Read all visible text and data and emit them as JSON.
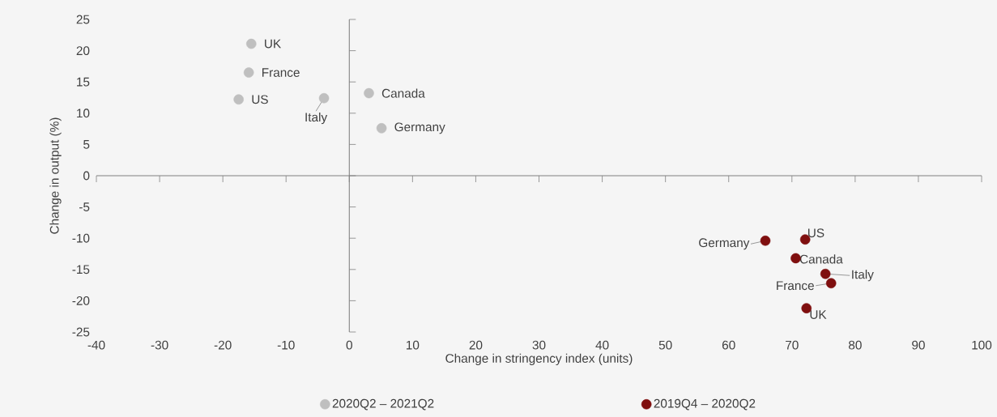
{
  "chart_data": {
    "type": "scatter",
    "xlabel": "Change in stringency index (units)",
    "ylabel": "Change in output (%)",
    "xlim": [
      -40,
      100
    ],
    "ylim": [
      -25,
      25
    ],
    "xticks": [
      -40,
      -30,
      -20,
      -10,
      0,
      10,
      20,
      30,
      40,
      50,
      60,
      70,
      80,
      90,
      100
    ],
    "yticks": [
      -25,
      -20,
      -15,
      -10,
      -5,
      0,
      5,
      10,
      15,
      20,
      25
    ],
    "marker": "circle",
    "legend": "bottom",
    "series": [
      {
        "name": "2020Q2 – 2021Q2",
        "color": "#bfbfbf",
        "x": [
          -15.5,
          -15.9,
          -17.5,
          -4.0,
          3.1,
          5.1
        ],
        "values": [
          21.1,
          16.5,
          12.2,
          12.4,
          13.2,
          7.6
        ]
      },
      {
        "name": "2019Q4 – 2020Q2",
        "color": "#7f0f0f",
        "x": [
          65.8,
          72.1,
          70.6,
          75.3,
          76.2,
          72.3
        ],
        "values": [
          -10.4,
          -10.2,
          -13.2,
          -15.7,
          -17.2,
          -21.2
        ]
      }
    ],
    "annotations": [
      {
        "text": "UK",
        "x": -15.5,
        "y": 21.1
      },
      {
        "text": "France",
        "x": -15.9,
        "y": 16.5
      },
      {
        "text": "US",
        "x": -17.5,
        "y": 12.2
      },
      {
        "text": "Italy",
        "x": -4.0,
        "y": 12.4
      },
      {
        "text": "Canada",
        "x": 3.1,
        "y": 13.2
      },
      {
        "text": "Germany",
        "x": 5.1,
        "y": 7.6
      },
      {
        "text": "Germany",
        "x": 65.8,
        "y": -10.4
      },
      {
        "text": "US",
        "x": 72.1,
        "y": -10.2
      },
      {
        "text": "Canada",
        "x": 70.6,
        "y": -13.2
      },
      {
        "text": "Italy",
        "x": 75.3,
        "y": -15.7
      },
      {
        "text": "France",
        "x": 76.2,
        "y": -17.2
      },
      {
        "text": "UK",
        "x": 72.3,
        "y": -21.2
      }
    ]
  }
}
